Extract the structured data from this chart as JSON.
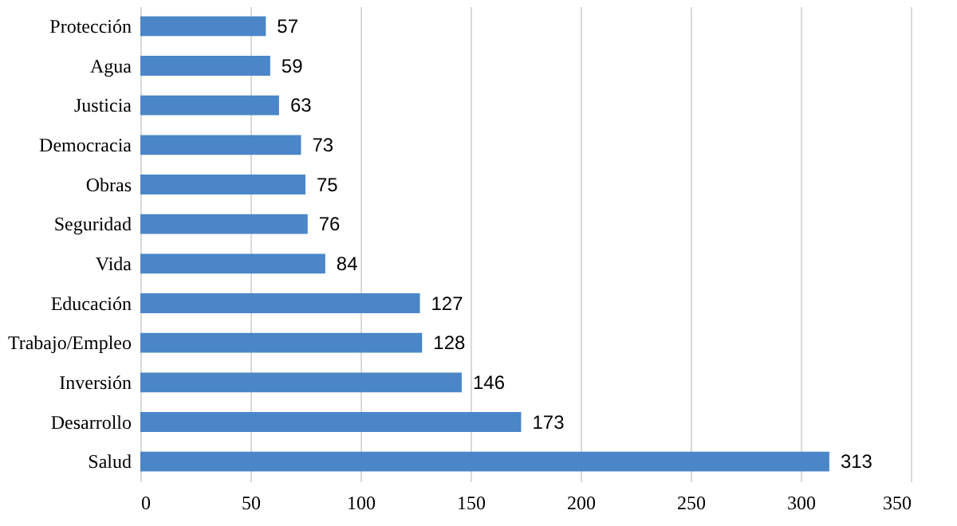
{
  "chart_data": {
    "type": "bar",
    "orientation": "horizontal",
    "categories": [
      "Protección",
      "Agua",
      "Justicia",
      "Democracia",
      "Obras",
      "Seguridad",
      "Vida",
      "Educación",
      "Trabajo/Empleo",
      "Inversión",
      "Desarrollo",
      "Salud"
    ],
    "values": [
      57,
      59,
      63,
      73,
      75,
      76,
      84,
      127,
      128,
      146,
      173,
      313
    ],
    "color": "#4a86c8",
    "xlim": [
      0,
      350
    ],
    "xticks": [
      0,
      50,
      100,
      150,
      200,
      250,
      300,
      350
    ],
    "grid": "x",
    "data_labels": true
  }
}
